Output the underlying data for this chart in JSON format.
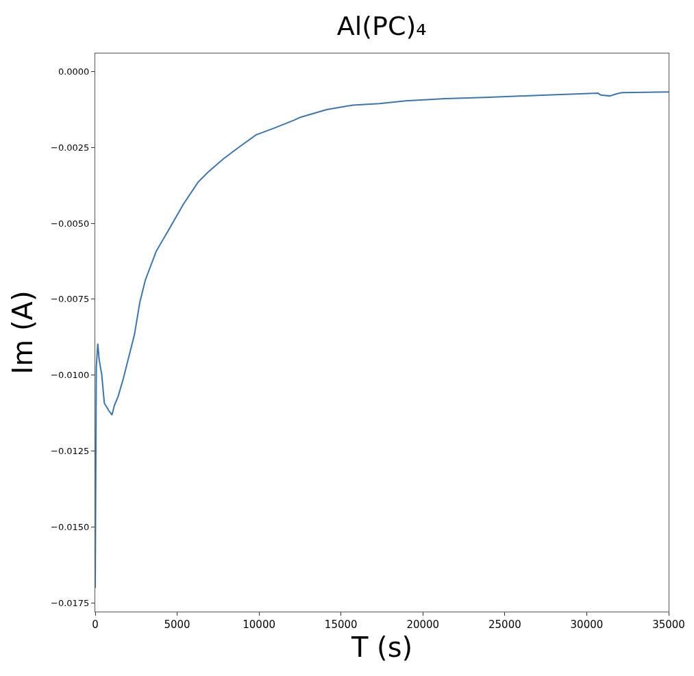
{
  "chart_data": {
    "type": "line",
    "title": "Al(PC)₄",
    "xlabel": "T (s)",
    "ylabel": "Im (A)",
    "xlim": [
      0,
      35000
    ],
    "xticks": [
      0,
      5000,
      10000,
      15000,
      20000,
      25000,
      30000,
      35000
    ],
    "ylim": [
      -0.01778,
      0.00059
    ],
    "yticks": [
      {
        "value": 0,
        "label": "0.0000"
      },
      {
        "value": -0.0025,
        "label": "−0.0025"
      },
      {
        "value": -0.005,
        "label": "−0.0050"
      },
      {
        "value": -0.0075,
        "label": "−0.0075"
      },
      {
        "value": -0.01,
        "label": "−0.0100"
      },
      {
        "value": -0.0125,
        "label": "−0.0125"
      },
      {
        "value": -0.015,
        "label": "−0.0150"
      },
      {
        "value": -0.0175,
        "label": "−0.0175"
      }
    ],
    "grid": false,
    "marker": "none",
    "line_style": "solid",
    "series": [
      {
        "color": "#3b75af",
        "x": [
          0,
          67,
          155,
          243,
          397,
          556,
          836,
          1020,
          1171,
          1397,
          1727,
          2061,
          2392,
          2726,
          3057,
          3722,
          4500,
          5386,
          6272,
          6937,
          7820,
          8710,
          9819,
          10914,
          12168,
          12524,
          14134,
          15723,
          17354,
          18943,
          21368,
          23793,
          27013,
          30693,
          30860,
          31404,
          31822,
          32144,
          35000
        ],
        "values": [
          -0.017,
          -0.00973,
          -0.00896,
          -0.0095,
          -0.00998,
          -0.01092,
          -0.01117,
          -0.01131,
          -0.01099,
          -0.0107,
          -0.01009,
          -0.00937,
          -0.00867,
          -0.00759,
          -0.00687,
          -0.00592,
          -0.0052,
          -0.00437,
          -0.00365,
          -0.00329,
          -0.00288,
          -0.00252,
          -0.00209,
          -0.00187,
          -0.0016,
          -0.00151,
          -0.00126,
          -0.00111,
          -0.00106,
          -0.00097,
          -0.0009,
          -0.00086,
          -0.00079,
          -0.00072,
          -0.00078,
          -0.00081,
          -0.00074,
          -0.0007,
          -0.00068
        ]
      }
    ]
  }
}
